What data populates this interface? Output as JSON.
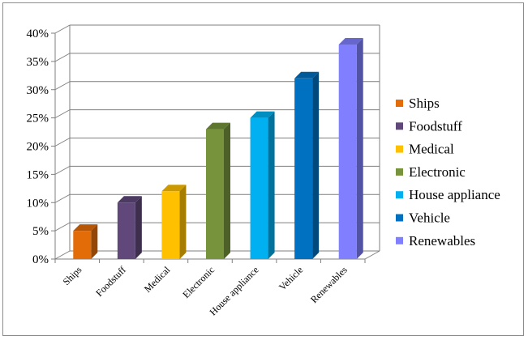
{
  "chart_data": {
    "type": "bar",
    "categories": [
      "Ships",
      "Foodstuff",
      "Medical",
      "Electronic",
      "House appliance",
      "Vehicle",
      "Renewables"
    ],
    "values": [
      5,
      10,
      12,
      23,
      25,
      32,
      38
    ],
    "ylim": [
      0,
      40
    ],
    "yticks": [
      0,
      5,
      10,
      15,
      20,
      25,
      30,
      35,
      40
    ],
    "ytick_labels": [
      "0%",
      "5%",
      "10%",
      "15%",
      "20%",
      "25%",
      "30%",
      "35%",
      "40%"
    ],
    "grid": true,
    "legend_position": "right",
    "colors": [
      "#E36C09",
      "#60497A",
      "#FFC000",
      "#77933C",
      "#00B0F0",
      "#0070C0",
      "#8080FF"
    ]
  }
}
